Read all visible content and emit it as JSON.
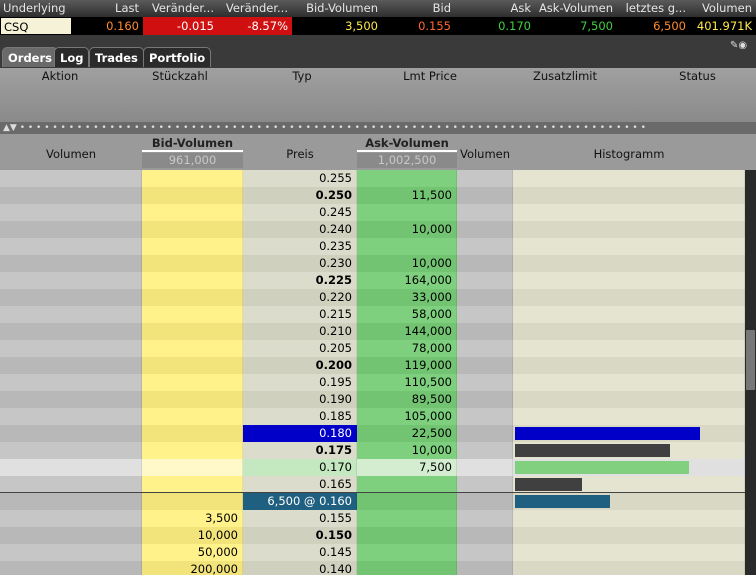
{
  "quote_header": {
    "columns": [
      "Underlying",
      "Last",
      "Veränder...",
      "Veränder...",
      "Bid-Volumen",
      "Bid",
      "Ask",
      "Ask-Volumen",
      "letztes g...",
      "Volumen"
    ],
    "values": [
      "CSQ",
      "0.160",
      "-0.015",
      "-8.57%",
      "3,500",
      "0.155",
      "0.170",
      "7,500",
      "6,500",
      "401.971K"
    ]
  },
  "tabs": [
    "Orders",
    "Log",
    "Trades",
    "Portfolio"
  ],
  "orders_columns": [
    "Aktion",
    "Stückzahl",
    "Typ",
    "Lmt Price",
    "Zusatzlimit",
    "Status"
  ],
  "book": {
    "columns": [
      "Volumen",
      "Bid-Volumen",
      "Preis",
      "Ask-Volumen",
      "Volumen",
      "Histogramm"
    ],
    "bid_total": "961,000",
    "ask_total": "1,002,500",
    "rows": [
      {
        "price": "0.255"
      },
      {
        "price": "0.250",
        "ask": "11,500"
      },
      {
        "price": "0.245"
      },
      {
        "price": "0.240",
        "ask": "10,000"
      },
      {
        "price": "0.235"
      },
      {
        "price": "0.230",
        "ask": "10,000"
      },
      {
        "price": "0.225",
        "ask": "164,000"
      },
      {
        "price": "0.220",
        "ask": "33,000"
      },
      {
        "price": "0.215",
        "ask": "58,000"
      },
      {
        "price": "0.210",
        "ask": "144,000"
      },
      {
        "price": "0.205",
        "ask": "78,000"
      },
      {
        "price": "0.200",
        "ask": "119,000"
      },
      {
        "price": "0.195",
        "ask": "110,500"
      },
      {
        "price": "0.190",
        "ask": "89,500"
      },
      {
        "price": "0.185",
        "ask": "105,000"
      },
      {
        "price": "0.180",
        "ask": "22,500"
      },
      {
        "price": "0.175",
        "ask": "10,000"
      },
      {
        "price": "0.170",
        "ask": "7,500"
      },
      {
        "price": "0.165"
      },
      {
        "price": "6,500 @ 0.160"
      },
      {
        "price": "0.155",
        "bid": "3,500"
      },
      {
        "price": "0.150",
        "bid": "10,000"
      },
      {
        "price": "0.145",
        "bid": "50,000"
      },
      {
        "price": "0.140",
        "bid": "200,000"
      }
    ]
  }
}
